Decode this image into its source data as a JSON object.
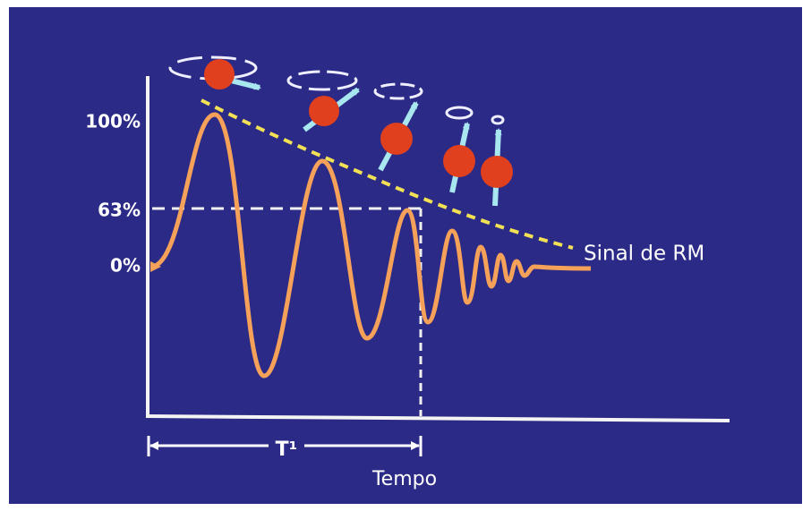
{
  "axis_labels": {
    "top": "100%",
    "middle": "63%",
    "bottom": "0%"
  },
  "signal_label": "Sinal de RM",
  "time_constant_label": "T¹",
  "time_axis_label": "Tempo"
}
